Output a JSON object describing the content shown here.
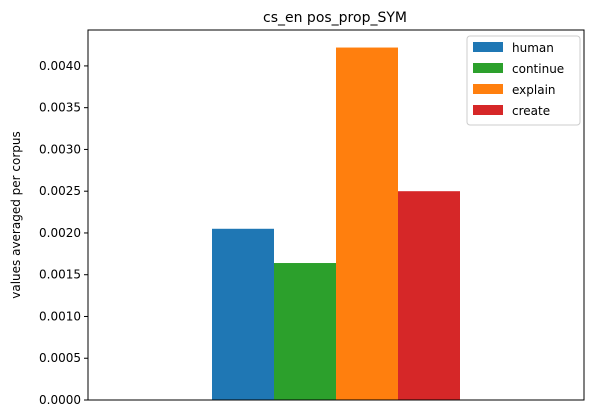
{
  "chart_data": {
    "type": "bar",
    "title": "cs_en pos_prop_SYM",
    "xlabel": "",
    "ylabel": "values averaged per corpus",
    "ylim": [
      0,
      0.00443
    ],
    "yticks": [
      "0.0000",
      "0.0005",
      "0.0010",
      "0.0015",
      "0.0020",
      "0.0025",
      "0.0030",
      "0.0035",
      "0.0040"
    ],
    "grid": false,
    "legend_position": "top-right",
    "categories": [
      ""
    ],
    "series": [
      {
        "name": "human",
        "color": "#1f77b4",
        "values": [
          0.00205
        ]
      },
      {
        "name": "continue",
        "color": "#2ca02c",
        "values": [
          0.00164
        ]
      },
      {
        "name": "explain",
        "color": "#ff7f0e",
        "values": [
          0.00422
        ]
      },
      {
        "name": "create",
        "color": "#d62728",
        "values": [
          0.0025
        ]
      }
    ]
  }
}
